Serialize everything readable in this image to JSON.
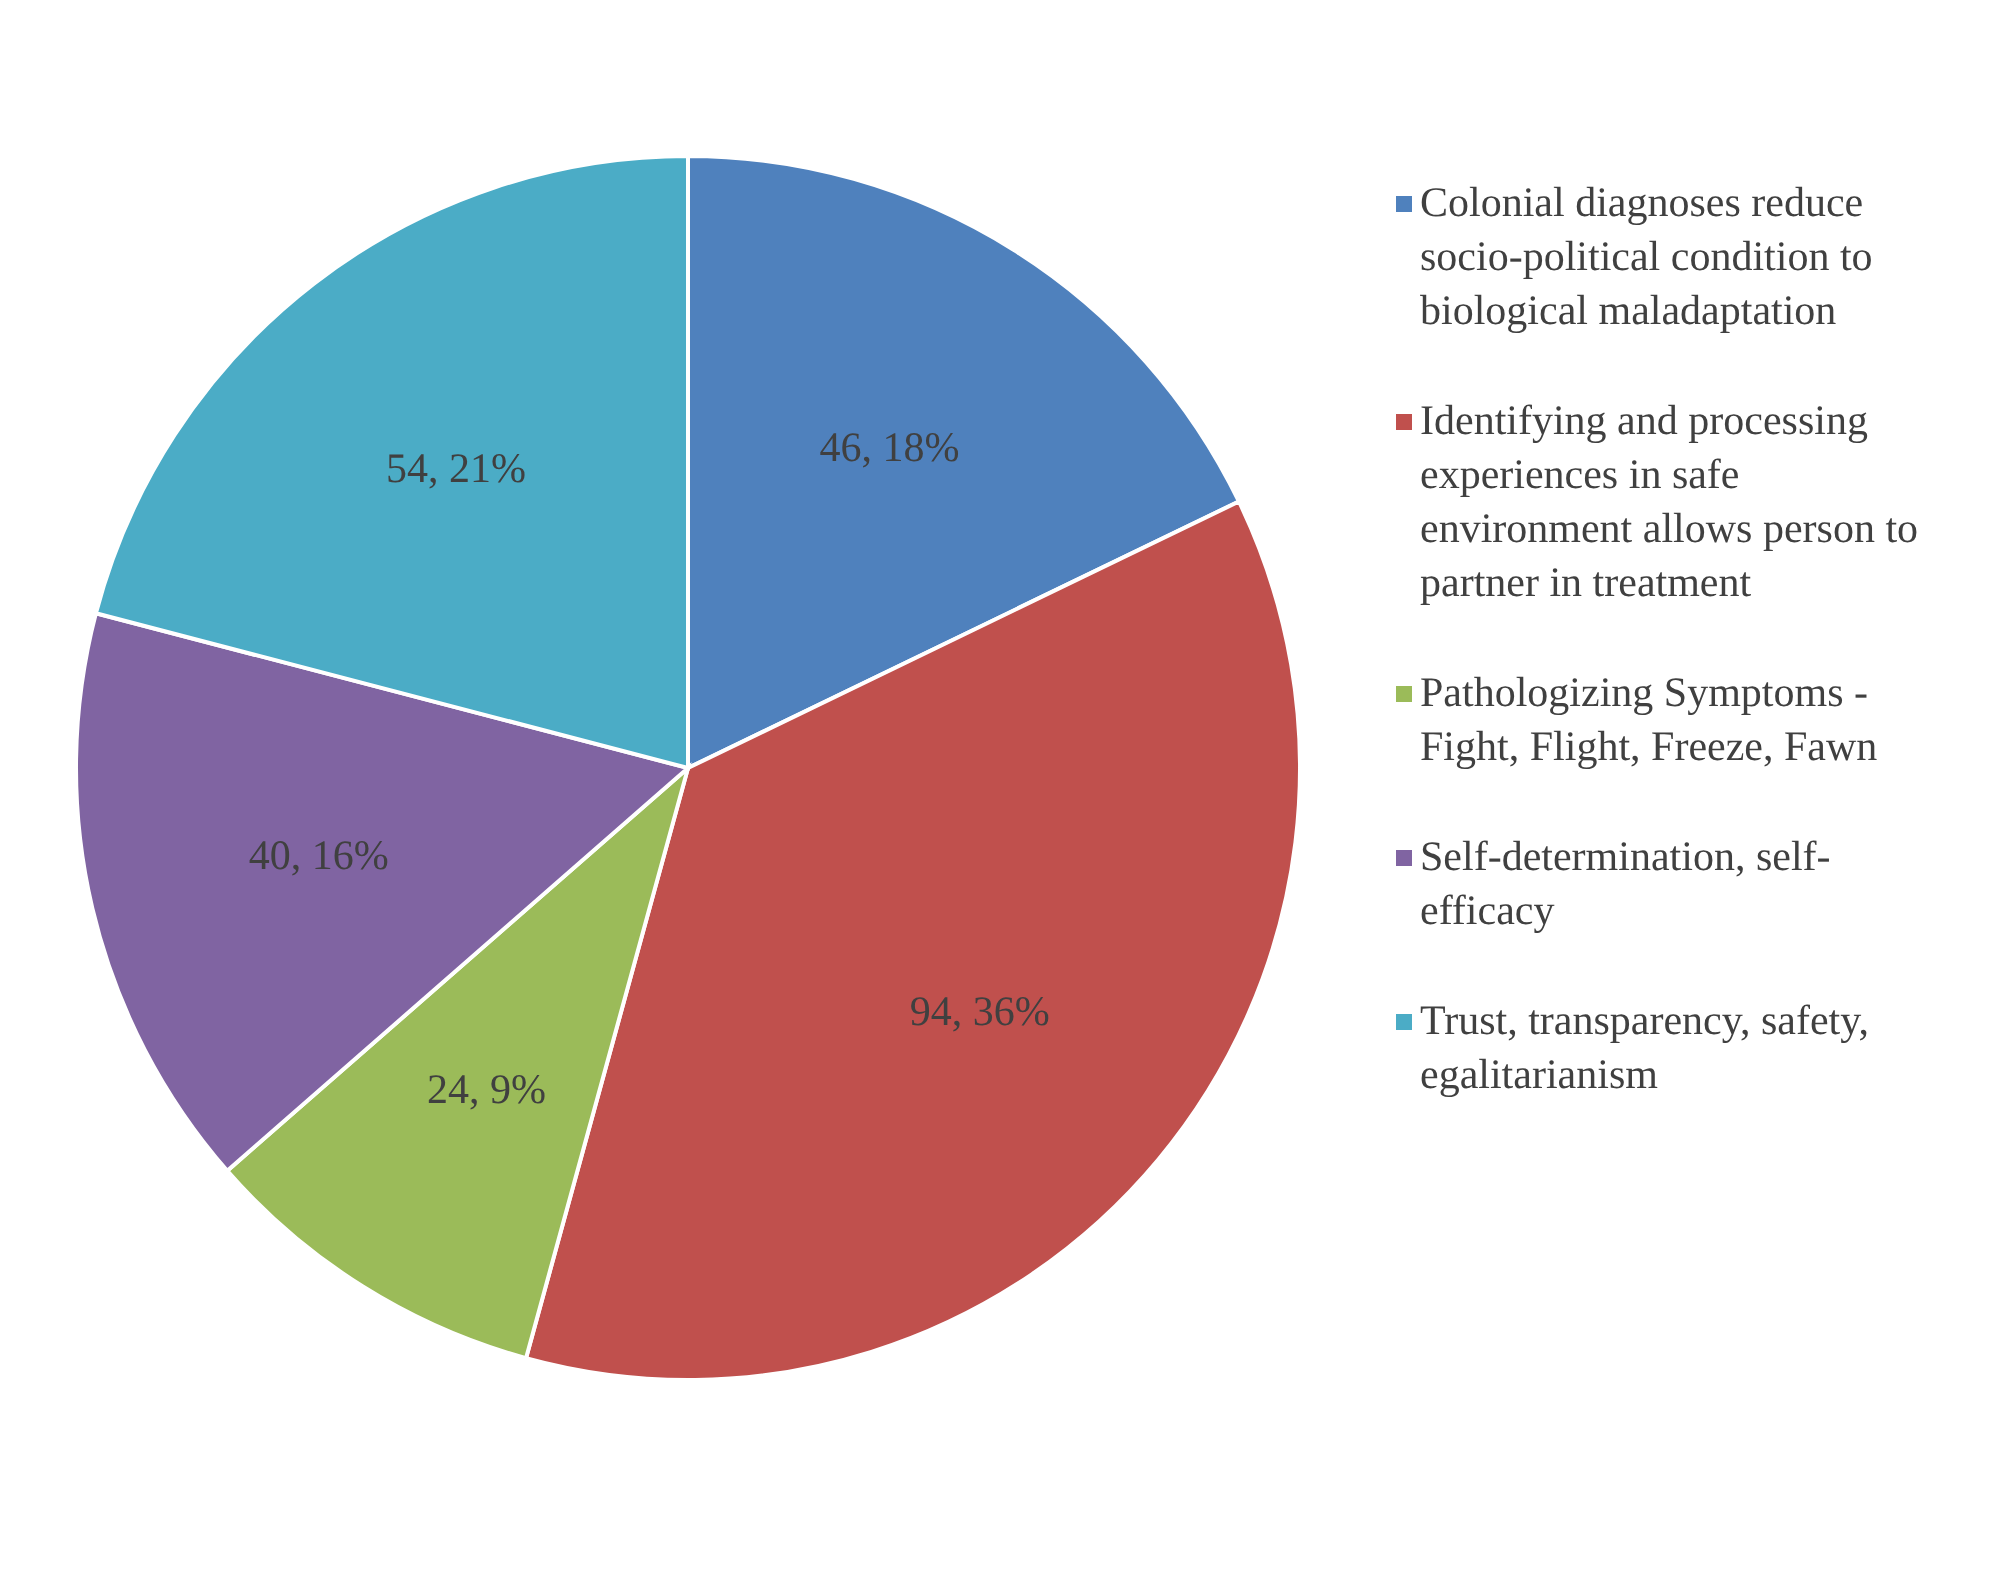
{
  "chart_data": {
    "type": "pie",
    "categories": [
      "Colonial diagnoses reduce socio-political condition to biological maladaptation",
      "Identifying and processing experiences in safe environment allows person to partner in treatment",
      "Pathologizing Symptoms - Fight, Flight, Freeze, Fawn",
      "Self-determination, self-efficacy",
      "Trust, transparency, safety, egalitarianism"
    ],
    "values": [
      46,
      94,
      24,
      40,
      54
    ],
    "value_labels": [
      "46, 18%",
      "94, 36%",
      "24, 9%",
      "40, 16%",
      "54, 21%"
    ],
    "colors": [
      "#4f81bd",
      "#c0504d",
      "#9bbb59",
      "#8064a2",
      "#4bacc6"
    ],
    "legend": "right"
  }
}
